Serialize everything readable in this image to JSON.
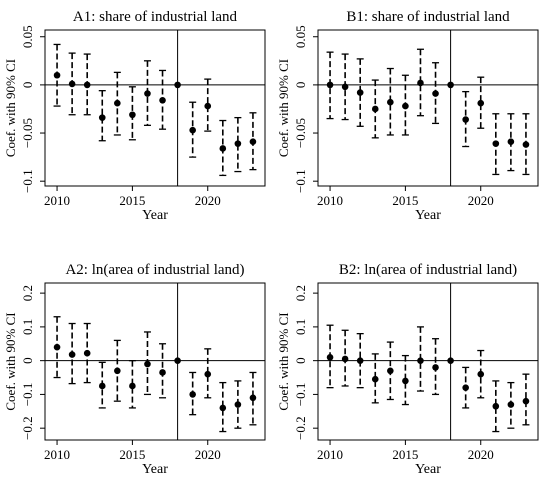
{
  "chart_data": [
    {
      "type": "scatter",
      "title": "A1: share of industrial land",
      "xlabel": "Year",
      "ylabel": "Coef. with 90% CI",
      "xlim": [
        2009.2,
        2023.8
      ],
      "ylim": [
        -0.105,
        0.057
      ],
      "xticks": [
        "2010",
        "2015",
        "2020"
      ],
      "yticks": [
        "0.05",
        "0",
        "−0.05",
        "−0.1"
      ],
      "ytick_values": [
        0.05,
        0,
        -0.05,
        -0.1
      ],
      "reference_year": 2018,
      "points": [
        {
          "x": 2010,
          "y": 0.01,
          "lo": -0.022,
          "hi": 0.042
        },
        {
          "x": 2011,
          "y": 0.001,
          "lo": -0.031,
          "hi": 0.033
        },
        {
          "x": 2012,
          "y": 0.0,
          "lo": -0.031,
          "hi": 0.032
        },
        {
          "x": 2013,
          "y": -0.034,
          "lo": -0.058,
          "hi": -0.006
        },
        {
          "x": 2014,
          "y": -0.019,
          "lo": -0.052,
          "hi": 0.013
        },
        {
          "x": 2015,
          "y": -0.031,
          "lo": -0.057,
          "hi": -0.002
        },
        {
          "x": 2016,
          "y": -0.009,
          "lo": -0.042,
          "hi": 0.025
        },
        {
          "x": 2017,
          "y": -0.016,
          "lo": -0.046,
          "hi": 0.015
        },
        {
          "x": 2018,
          "y": 0.0,
          "lo": 0.0,
          "hi": 0.0
        },
        {
          "x": 2019,
          "y": -0.047,
          "lo": -0.075,
          "hi": -0.018
        },
        {
          "x": 2020,
          "y": -0.022,
          "lo": -0.048,
          "hi": 0.006
        },
        {
          "x": 2021,
          "y": -0.066,
          "lo": -0.094,
          "hi": -0.037
        },
        {
          "x": 2022,
          "y": -0.061,
          "lo": -0.09,
          "hi": -0.034
        },
        {
          "x": 2023,
          "y": -0.059,
          "lo": -0.088,
          "hi": -0.029
        }
      ]
    },
    {
      "type": "scatter",
      "title": "B1: share of industrial land",
      "xlabel": "Year",
      "ylabel": "Coef. with 90% CI",
      "xlim": [
        2009.2,
        2023.8
      ],
      "ylim": [
        -0.105,
        0.057
      ],
      "xticks": [
        "2010",
        "2015",
        "2020"
      ],
      "yticks": [
        "0.05",
        "0",
        "−0.05",
        "−0.1"
      ],
      "ytick_values": [
        0.05,
        0,
        -0.05,
        -0.1
      ],
      "reference_year": 2018,
      "points": [
        {
          "x": 2010,
          "y": 0.0,
          "lo": -0.035,
          "hi": 0.034
        },
        {
          "x": 2011,
          "y": -0.002,
          "lo": -0.036,
          "hi": 0.032
        },
        {
          "x": 2012,
          "y": -0.008,
          "lo": -0.043,
          "hi": 0.027
        },
        {
          "x": 2013,
          "y": -0.025,
          "lo": -0.055,
          "hi": 0.005
        },
        {
          "x": 2014,
          "y": -0.018,
          "lo": -0.052,
          "hi": 0.017
        },
        {
          "x": 2015,
          "y": -0.022,
          "lo": -0.052,
          "hi": 0.01
        },
        {
          "x": 2016,
          "y": 0.002,
          "lo": -0.032,
          "hi": 0.037
        },
        {
          "x": 2017,
          "y": -0.009,
          "lo": -0.04,
          "hi": 0.023
        },
        {
          "x": 2018,
          "y": 0.0,
          "lo": 0.0,
          "hi": 0.0
        },
        {
          "x": 2019,
          "y": -0.036,
          "lo": -0.064,
          "hi": -0.007
        },
        {
          "x": 2020,
          "y": -0.019,
          "lo": -0.045,
          "hi": 0.008
        },
        {
          "x": 2021,
          "y": -0.061,
          "lo": -0.093,
          "hi": -0.03
        },
        {
          "x": 2022,
          "y": -0.059,
          "lo": -0.089,
          "hi": -0.03
        },
        {
          "x": 2023,
          "y": -0.062,
          "lo": -0.093,
          "hi": -0.03
        }
      ]
    },
    {
      "type": "scatter",
      "title": "A2: ln(area of industrial land)",
      "xlabel": "Year",
      "ylabel": "Coef. with 90% CI",
      "xlim": [
        2009.2,
        2023.8
      ],
      "ylim": [
        -0.235,
        0.23
      ],
      "xticks": [
        "2010",
        "2015",
        "2020"
      ],
      "yticks": [
        "0.2",
        "0.1",
        "0",
        "−0.1",
        "−0.2"
      ],
      "ytick_values": [
        0.2,
        0.1,
        0,
        -0.1,
        -0.2
      ],
      "reference_year": 2018,
      "points": [
        {
          "x": 2010,
          "y": 0.04,
          "lo": -0.05,
          "hi": 0.13
        },
        {
          "x": 2011,
          "y": 0.018,
          "lo": -0.068,
          "hi": 0.11
        },
        {
          "x": 2012,
          "y": 0.022,
          "lo": -0.065,
          "hi": 0.11
        },
        {
          "x": 2013,
          "y": -0.075,
          "lo": -0.14,
          "hi": -0.005
        },
        {
          "x": 2014,
          "y": -0.03,
          "lo": -0.12,
          "hi": 0.06
        },
        {
          "x": 2015,
          "y": -0.075,
          "lo": -0.14,
          "hi": 0.0
        },
        {
          "x": 2016,
          "y": -0.01,
          "lo": -0.1,
          "hi": 0.085
        },
        {
          "x": 2017,
          "y": -0.035,
          "lo": -0.11,
          "hi": 0.05
        },
        {
          "x": 2018,
          "y": 0.0,
          "lo": 0.0,
          "hi": 0.0
        },
        {
          "x": 2019,
          "y": -0.1,
          "lo": -0.16,
          "hi": -0.035
        },
        {
          "x": 2020,
          "y": -0.04,
          "lo": -0.11,
          "hi": 0.035
        },
        {
          "x": 2021,
          "y": -0.14,
          "lo": -0.21,
          "hi": -0.065
        },
        {
          "x": 2022,
          "y": -0.13,
          "lo": -0.2,
          "hi": -0.06
        },
        {
          "x": 2023,
          "y": -0.11,
          "lo": -0.19,
          "hi": -0.035
        }
      ]
    },
    {
      "type": "scatter",
      "title": "B2: ln(area of industrial land)",
      "xlabel": "Year",
      "ylabel": "Coef. with 90% CI",
      "xlim": [
        2009.2,
        2023.8
      ],
      "ylim": [
        -0.235,
        0.23
      ],
      "xticks": [
        "2010",
        "2015",
        "2020"
      ],
      "yticks": [
        "0.2",
        "0.1",
        "0",
        "−0.1",
        "−0.2"
      ],
      "ytick_values": [
        0.2,
        0.1,
        0,
        -0.1,
        -0.2
      ],
      "reference_year": 2018,
      "points": [
        {
          "x": 2010,
          "y": 0.01,
          "lo": -0.08,
          "hi": 0.105
        },
        {
          "x": 2011,
          "y": 0.005,
          "lo": -0.075,
          "hi": 0.09
        },
        {
          "x": 2012,
          "y": 0.0,
          "lo": -0.08,
          "hi": 0.08
        },
        {
          "x": 2013,
          "y": -0.055,
          "lo": -0.125,
          "hi": 0.02
        },
        {
          "x": 2014,
          "y": -0.03,
          "lo": -0.115,
          "hi": 0.055
        },
        {
          "x": 2015,
          "y": -0.06,
          "lo": -0.13,
          "hi": 0.015
        },
        {
          "x": 2016,
          "y": 0.0,
          "lo": -0.09,
          "hi": 0.1
        },
        {
          "x": 2017,
          "y": -0.02,
          "lo": -0.1,
          "hi": 0.065
        },
        {
          "x": 2018,
          "y": 0.0,
          "lo": 0.0,
          "hi": 0.0
        },
        {
          "x": 2019,
          "y": -0.08,
          "lo": -0.14,
          "hi": -0.02
        },
        {
          "x": 2020,
          "y": -0.04,
          "lo": -0.11,
          "hi": 0.03
        },
        {
          "x": 2021,
          "y": -0.135,
          "lo": -0.21,
          "hi": -0.06
        },
        {
          "x": 2022,
          "y": -0.13,
          "lo": -0.2,
          "hi": -0.065
        },
        {
          "x": 2023,
          "y": -0.12,
          "lo": -0.19,
          "hi": -0.04
        }
      ]
    }
  ]
}
